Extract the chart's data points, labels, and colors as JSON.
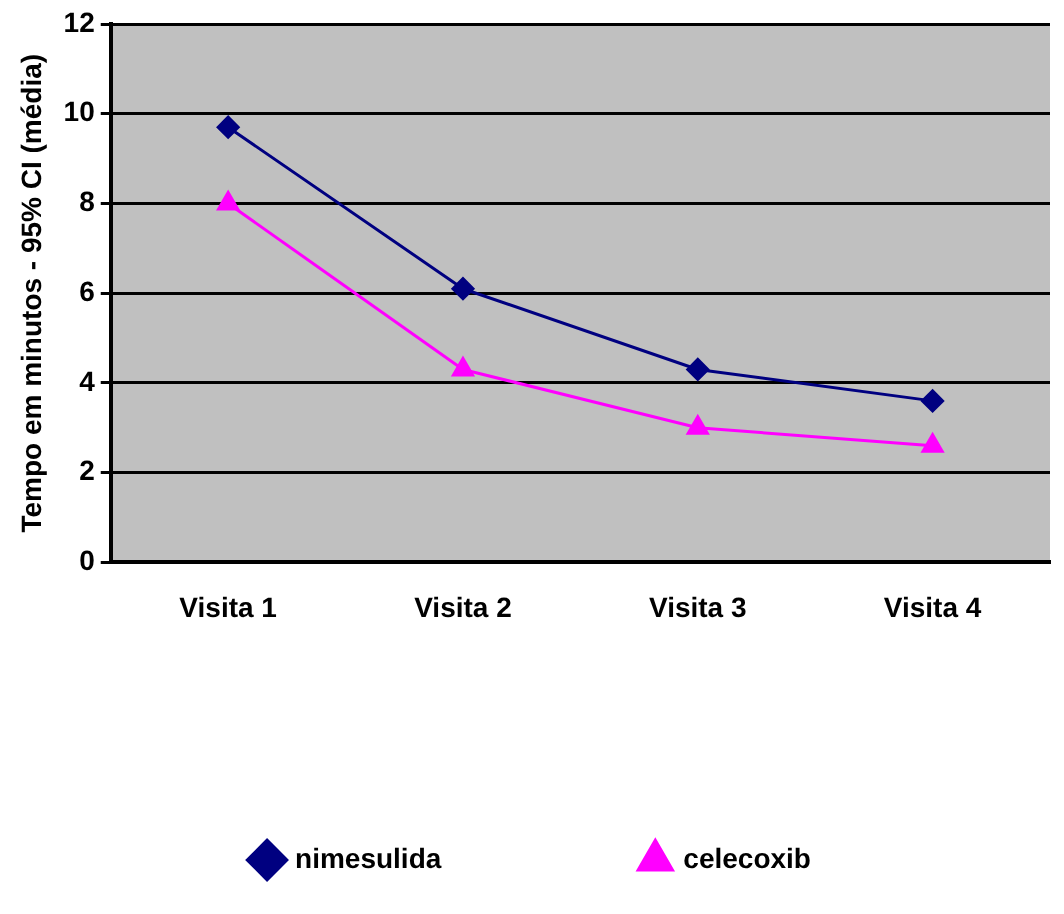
{
  "chart_data": {
    "type": "line",
    "ylabel": "Tempo em minutos - 95% CI (média)",
    "categories": [
      "Visita 1",
      "Visita 2",
      "Visita 3",
      "Visita 4"
    ],
    "series": [
      {
        "name": "nimesulida",
        "color": "#000080",
        "marker": "diamond",
        "values": [
          9.7,
          6.1,
          4.3,
          3.6
        ]
      },
      {
        "name": "celecoxib",
        "color": "#ff00ff",
        "marker": "triangle",
        "values": [
          8.0,
          4.3,
          3.0,
          2.6
        ]
      }
    ],
    "ylim": [
      0,
      12
    ],
    "yticks": [
      0,
      2,
      4,
      6,
      8,
      10,
      12
    ],
    "grid": "y",
    "legend": "bottom"
  }
}
